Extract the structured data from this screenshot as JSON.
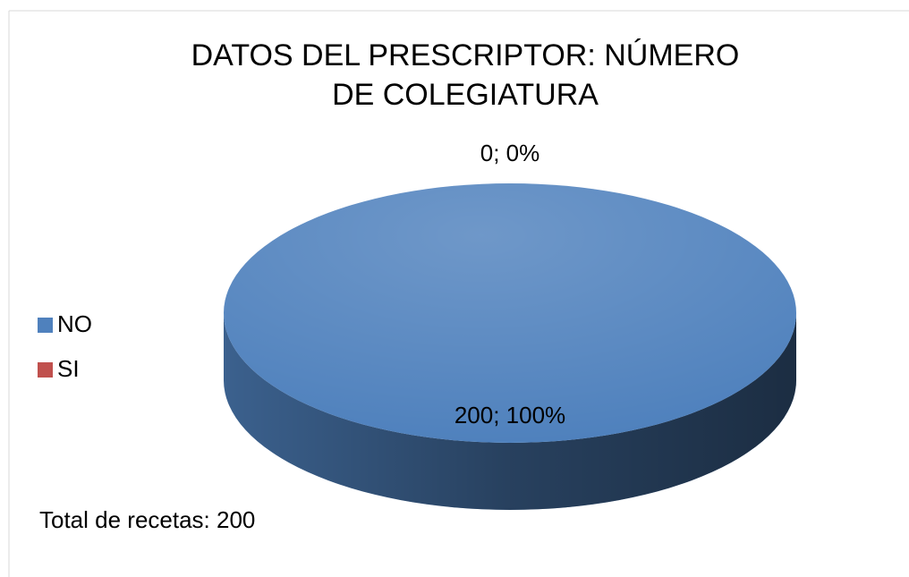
{
  "chart_data": {
    "type": "pie",
    "title": "DATOS DEL PRESCRIPTOR: NÚMERO DE COLEGIATURA",
    "categories": [
      "NO",
      "SI"
    ],
    "values": [
      200,
      0
    ],
    "value_labels": [
      "200; 100%",
      "0; 0%"
    ],
    "colors": [
      "#4f81bd",
      "#c0504d"
    ],
    "legend": "left",
    "annotation": "Total de recetas: 200"
  }
}
